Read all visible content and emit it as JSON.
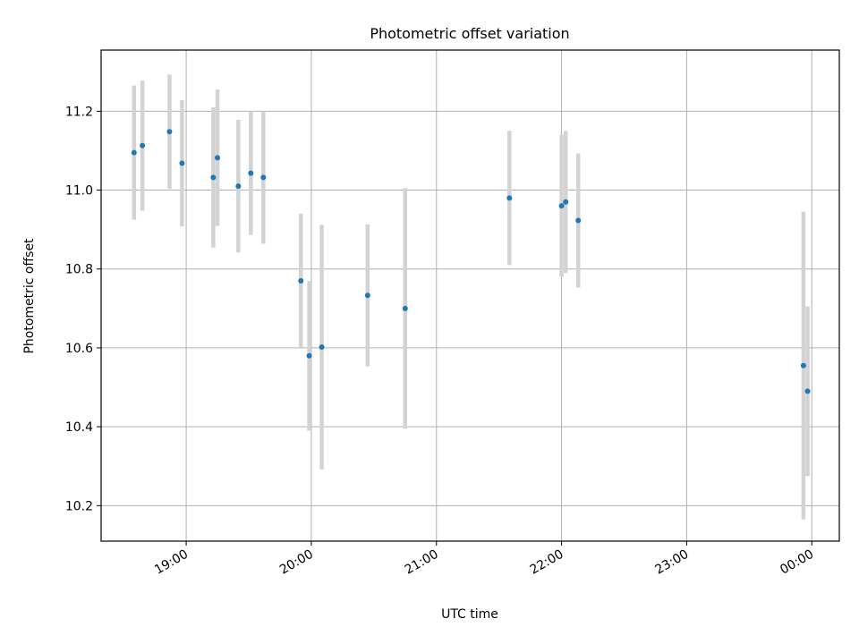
{
  "chart_data": {
    "type": "scatter",
    "title": "Photometric offset variation",
    "xlabel": "UTC time",
    "ylabel": "Photometric offset",
    "x_axis": "time (hours UTC, 24+ = next day)",
    "xlim_hours": [
      18.32,
      24.22
    ],
    "ylim": [
      10.11,
      11.355
    ],
    "x_ticks": [
      {
        "hour": 19,
        "label": "19:00"
      },
      {
        "hour": 20,
        "label": "20:00"
      },
      {
        "hour": 21,
        "label": "21:00"
      },
      {
        "hour": 22,
        "label": "22:00"
      },
      {
        "hour": 23,
        "label": "23:00"
      },
      {
        "hour": 24,
        "label": "00:00"
      }
    ],
    "y_ticks": [
      {
        "value": 10.2,
        "label": "10.2"
      },
      {
        "value": 10.4,
        "label": "10.4"
      },
      {
        "value": 10.6,
        "label": "10.6"
      },
      {
        "value": 10.8,
        "label": "10.8"
      },
      {
        "value": 11.0,
        "label": "11.0"
      },
      {
        "value": 11.2,
        "label": "11.2"
      }
    ],
    "grid": true,
    "colors": {
      "point": "#1f77b4",
      "errorbar": "#d3d3d3",
      "grid": "#b0b0b0"
    },
    "points": [
      {
        "time": "18:35",
        "y": 11.095,
        "err": 0.17
      },
      {
        "time": "18:39",
        "y": 11.113,
        "err": 0.165
      },
      {
        "time": "18:52",
        "y": 11.148,
        "err": 0.145
      },
      {
        "time": "18:58",
        "y": 11.068,
        "err": 0.16
      },
      {
        "time": "19:13",
        "y": 11.032,
        "err": 0.178
      },
      {
        "time": "19:15",
        "y": 11.082,
        "err": 0.173
      },
      {
        "time": "19:25",
        "y": 11.01,
        "err": 0.168
      },
      {
        "time": "19:31",
        "y": 11.043,
        "err": 0.157
      },
      {
        "time": "19:37",
        "y": 11.032,
        "err": 0.168
      },
      {
        "time": "19:55",
        "y": 10.77,
        "err": 0.17
      },
      {
        "time": "19:59",
        "y": 10.58,
        "err": 0.19
      },
      {
        "time": "20:05",
        "y": 10.602,
        "err": 0.31
      },
      {
        "time": "20:27",
        "y": 10.733,
        "err": 0.18
      },
      {
        "time": "20:45",
        "y": 10.7,
        "err": 0.305
      },
      {
        "time": "21:35",
        "y": 10.98,
        "err": 0.17
      },
      {
        "time": "22:00",
        "y": 10.96,
        "err": 0.18
      },
      {
        "time": "22:02",
        "y": 10.97,
        "err": 0.18
      },
      {
        "time": "22:08",
        "y": 10.923,
        "err": 0.17
      },
      {
        "time": "23:56",
        "y": 10.555,
        "err": 0.39
      },
      {
        "time": "23:58",
        "y": 10.49,
        "err": 0.215
      }
    ]
  }
}
